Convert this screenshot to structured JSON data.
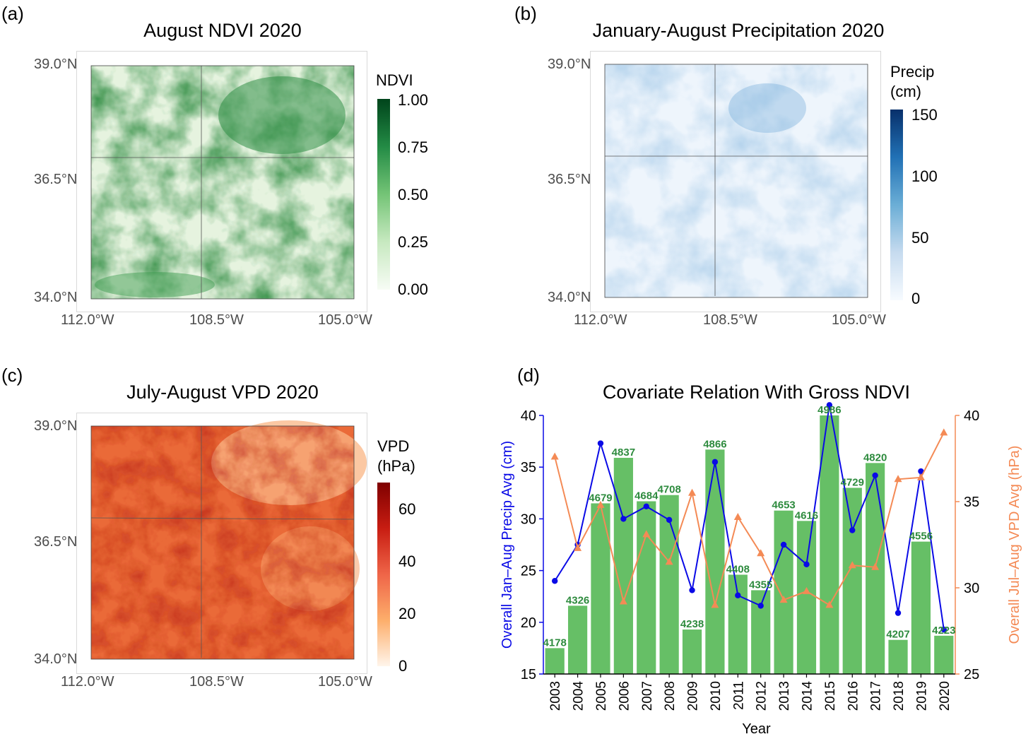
{
  "panels": {
    "a": {
      "letter": "(a)",
      "title": "August NDVI 2020",
      "legend_title": "NDVI",
      "legend_labels": [
        "1.00",
        "0.75",
        "0.50",
        "0.25",
        "0.00"
      ],
      "lat_labels": [
        "39.0°N",
        "36.5°N",
        "34.0°N"
      ],
      "lon_labels": [
        "112.0°W",
        "108.5°W",
        "105.0°W"
      ],
      "colors": {
        "low": "#f5fbf3",
        "high": "#00441b"
      }
    },
    "b": {
      "letter": "(b)",
      "title": "January-August Precipitation 2020",
      "legend_title_line1": "Precip",
      "legend_title_line2": "(cm)",
      "legend_labels": [
        "150",
        "100",
        "50",
        "0"
      ],
      "lat_labels": [
        "39.0°N",
        "36.5°N",
        "34.0°N"
      ],
      "lon_labels": [
        "112.0°W",
        "108.5°W",
        "105.0°W"
      ],
      "colors": {
        "low": "#f7fbff",
        "high": "#08306b"
      }
    },
    "c": {
      "letter": "(c)",
      "title": "July-August VPD 2020",
      "legend_title_line1": "VPD",
      "legend_title_line2": "(hPa)",
      "legend_labels": [
        "60",
        "40",
        "20",
        "0"
      ],
      "lat_labels": [
        "39.0°N",
        "36.5°N",
        "34.0°N"
      ],
      "lon_labels": [
        "112.0°W",
        "108.5°W",
        "105.0°W"
      ],
      "colors": {
        "low": "#fff5eb",
        "high": "#7f0000"
      }
    },
    "d": {
      "letter": "(d)"
    }
  },
  "chart_data": {
    "type": "bar",
    "title": "Covariate Relation With Gross NDVI",
    "xlabel": "Year",
    "ylabel_left": "Overall Jan–Aug Precip Avg (cm)",
    "ylabel_right": "Overall Jul–Aug VPD Avg (hPa)",
    "ylim_left": [
      15,
      40
    ],
    "ylim_right": [
      25,
      40
    ],
    "yticks_left": [
      15,
      20,
      25,
      30,
      35,
      40
    ],
    "yticks_right": [
      25,
      30,
      35,
      40
    ],
    "categories": [
      "2003",
      "2004",
      "2005",
      "2006",
      "2007",
      "2008",
      "2009",
      "2010",
      "2011",
      "2012",
      "2013",
      "2014",
      "2015",
      "2016",
      "2017",
      "2018",
      "2019",
      "2020"
    ],
    "bars": {
      "name": "Gross NDVI",
      "values": [
        4178,
        4326,
        4679,
        4837,
        4684,
        4708,
        4238,
        4866,
        4408,
        4355,
        4653,
        4616,
        4986,
        4729,
        4820,
        4207,
        4556,
        4223
      ],
      "heights_on_left_axis": [
        17.5,
        21.6,
        31.5,
        35.9,
        31.7,
        32.3,
        19.3,
        36.7,
        24.6,
        23.1,
        30.8,
        29.8,
        40.0,
        33.0,
        35.4,
        18.3,
        27.8,
        18.7
      ],
      "color": "#66bf66",
      "label_color": "#2e8b3e"
    },
    "series": [
      {
        "name": "Precip",
        "axis": "left",
        "color": "#0a0ae6",
        "marker": "circle",
        "values": [
          24.0,
          27.5,
          37.3,
          30.0,
          31.2,
          29.9,
          23.1,
          35.5,
          22.6,
          21.6,
          27.5,
          25.6,
          41.0,
          28.9,
          34.2,
          20.9,
          34.6,
          19.3
        ]
      },
      {
        "name": "VPD",
        "axis": "right",
        "color": "#f48a55",
        "marker": "triangle",
        "values": [
          37.6,
          32.3,
          34.8,
          29.2,
          33.1,
          31.5,
          35.5,
          29.0,
          34.1,
          32.0,
          29.3,
          29.8,
          29.0,
          31.3,
          31.2,
          36.3,
          36.4,
          39.0
        ]
      }
    ]
  }
}
